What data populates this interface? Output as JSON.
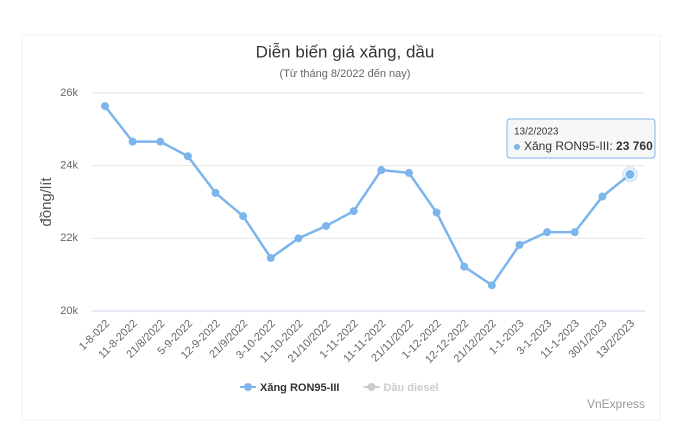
{
  "chart_data": {
    "type": "line",
    "title": "Diễn biến giá xăng, dầu",
    "subtitle": "(Từ tháng 8/2022 đến nay)",
    "y_label": "đồng/lít",
    "credit": "VnExpress",
    "categories": [
      "1-8-022",
      "11-8-2022",
      "21/8/2022",
      "5-9-2022",
      "12-9-2022",
      "21/9/2022",
      "3-10-2022",
      "11-10-2022",
      "21/10/2022",
      "1-11-2022",
      "11-11-2022",
      "21/11/2022",
      "1-12-2022",
      "12-12-2022",
      "21/12/2022",
      "1-1-2023",
      "3-1-2023",
      "11-1-2023",
      "30/1/2023",
      "13/2/2023"
    ],
    "series": [
      {
        "name": "Xăng RON95-III",
        "color": "#7cb5ec",
        "values": [
          25640,
          24660,
          24660,
          24260,
          23250,
          22610,
          21460,
          22000,
          22340,
          22750,
          23880,
          23800,
          22710,
          21220,
          20710,
          21820,
          22170,
          22170,
          23150,
          23760
        ],
        "value_labels": [
          null,
          null,
          null,
          null,
          null,
          null,
          null,
          null,
          null,
          null,
          null,
          null,
          null,
          null,
          null,
          null,
          null,
          null,
          null,
          "23 760"
        ]
      },
      {
        "name": "Dầu diesel",
        "color": "#cccccc",
        "visible": false
      }
    ],
    "ylim": [
      20000,
      26000
    ],
    "yticks": [
      {
        "value": 20000,
        "label": "20k"
      },
      {
        "value": 22000,
        "label": "22k"
      },
      {
        "value": 24000,
        "label": "24k"
      },
      {
        "value": 26000,
        "label": "26k"
      }
    ],
    "grid": true,
    "legend": "bottom"
  }
}
